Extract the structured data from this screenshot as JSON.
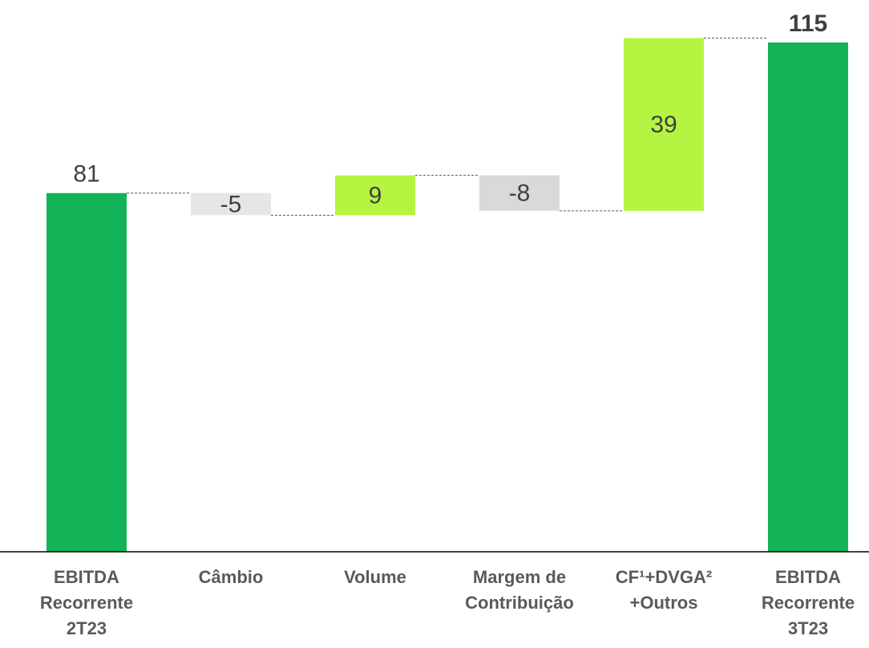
{
  "chart_data": {
    "type": "waterfall",
    "categories": [
      "EBITDA Recorrente 2T23",
      "Câmbio",
      "Volume",
      "Margem de Contribuição",
      "CF¹+DVGA² +Outros",
      "EBITDA Recorrente 3T23"
    ],
    "values": [
      81,
      -5,
      9,
      -8,
      39,
      115
    ],
    "colors": [
      "#12b457",
      "#e6e6e6",
      "#b5f542",
      "#d9d9d9",
      "#b5f542",
      "#12b457"
    ],
    "ylim": [
      0,
      115
    ]
  }
}
